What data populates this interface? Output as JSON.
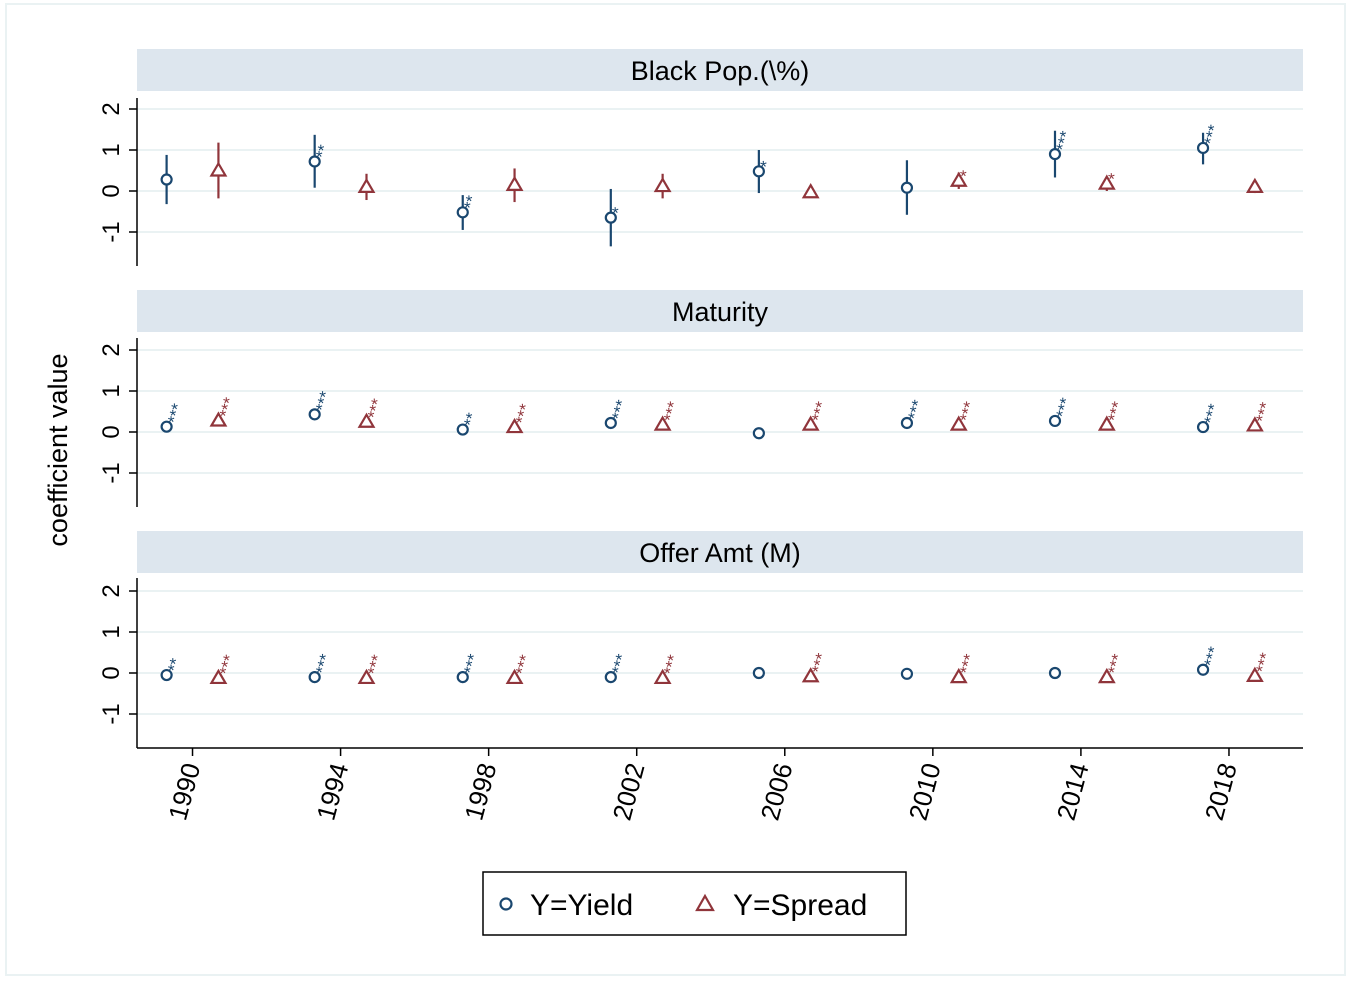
{
  "chart_data": {
    "type": "scatter",
    "ylabel": "coefficient value",
    "x_ticks": [
      1990,
      1994,
      1998,
      2002,
      2006,
      2010,
      2014,
      2018
    ],
    "xlim": [
      1988.5,
      2020
    ],
    "ylim": [
      -1.8,
      2.5
    ],
    "y_ticks": [
      -1,
      0,
      1,
      2
    ],
    "grid": true,
    "legend_position": "bottom",
    "colors": {
      "yield": "#1a476f",
      "spread": "#90353b",
      "strip": "#dde6ee",
      "grid": "#eaf2f3",
      "frame": "#eaf2f3"
    },
    "legend": [
      {
        "label": "Y=Yield",
        "marker": "circle",
        "color": "#1a476f"
      },
      {
        "label": "Y=Spread",
        "marker": "triangle",
        "color": "#90353b"
      }
    ],
    "panels": [
      {
        "title": "Black Pop.(\\%)",
        "series": [
          {
            "name": "Y=Yield",
            "points": [
              {
                "x": 1989.3,
                "y": 0.28,
                "lo": -0.32,
                "hi": 0.88,
                "stars": ""
              },
              {
                "x": 1993.3,
                "y": 0.72,
                "lo": 0.08,
                "hi": 1.37,
                "stars": "**"
              },
              {
                "x": 1997.3,
                "y": -0.52,
                "lo": -0.95,
                "hi": -0.1,
                "stars": "**"
              },
              {
                "x": 2001.3,
                "y": -0.65,
                "lo": -1.35,
                "hi": 0.05,
                "stars": "*"
              },
              {
                "x": 2005.3,
                "y": 0.48,
                "lo": -0.05,
                "hi": 1.0,
                "stars": "*"
              },
              {
                "x": 2009.3,
                "y": 0.08,
                "lo": -0.58,
                "hi": 0.75,
                "stars": ""
              },
              {
                "x": 2013.3,
                "y": 0.9,
                "lo": 0.33,
                "hi": 1.47,
                "stars": "***"
              },
              {
                "x": 2017.3,
                "y": 1.05,
                "lo": 0.65,
                "hi": 1.42,
                "stars": "***"
              }
            ]
          },
          {
            "name": "Y=Spread",
            "points": [
              {
                "x": 1990.7,
                "y": 0.5,
                "lo": -0.18,
                "hi": 1.18,
                "stars": ""
              },
              {
                "x": 1994.7,
                "y": 0.1,
                "lo": -0.22,
                "hi": 0.42,
                "stars": ""
              },
              {
                "x": 1998.7,
                "y": 0.15,
                "lo": -0.27,
                "hi": 0.55,
                "stars": ""
              },
              {
                "x": 2002.7,
                "y": 0.12,
                "lo": -0.18,
                "hi": 0.42,
                "stars": ""
              },
              {
                "x": 2006.7,
                "y": -0.03,
                "lo": -0.15,
                "hi": 0.1,
                "stars": ""
              },
              {
                "x": 2010.7,
                "y": 0.25,
                "lo": 0.05,
                "hi": 0.45,
                "stars": "*"
              },
              {
                "x": 2014.7,
                "y": 0.18,
                "lo": 0.0,
                "hi": 0.35,
                "stars": "*"
              },
              {
                "x": 2018.7,
                "y": 0.1,
                "lo": -0.05,
                "hi": 0.25,
                "stars": ""
              }
            ]
          }
        ]
      },
      {
        "title": "Maturity",
        "series": [
          {
            "name": "Y=Yield",
            "points": [
              {
                "x": 1989.3,
                "y": 0.13,
                "lo": 0.08,
                "hi": 0.18,
                "stars": "***"
              },
              {
                "x": 1993.3,
                "y": 0.43,
                "lo": 0.38,
                "hi": 0.48,
                "stars": "***"
              },
              {
                "x": 1997.3,
                "y": 0.06,
                "lo": 0.01,
                "hi": 0.11,
                "stars": "**"
              },
              {
                "x": 2001.3,
                "y": 0.22,
                "lo": 0.17,
                "hi": 0.27,
                "stars": "***"
              },
              {
                "x": 2005.3,
                "y": -0.03,
                "lo": -0.08,
                "hi": 0.02,
                "stars": ""
              },
              {
                "x": 2009.3,
                "y": 0.22,
                "lo": 0.17,
                "hi": 0.27,
                "stars": "***"
              },
              {
                "x": 2013.3,
                "y": 0.27,
                "lo": 0.22,
                "hi": 0.32,
                "stars": "***"
              },
              {
                "x": 2017.3,
                "y": 0.12,
                "lo": 0.07,
                "hi": 0.17,
                "stars": "***"
              }
            ]
          },
          {
            "name": "Y=Spread",
            "points": [
              {
                "x": 1990.7,
                "y": 0.28,
                "lo": 0.23,
                "hi": 0.33,
                "stars": "***"
              },
              {
                "x": 1994.7,
                "y": 0.25,
                "lo": 0.2,
                "hi": 0.3,
                "stars": "***"
              },
              {
                "x": 1998.7,
                "y": 0.12,
                "lo": 0.07,
                "hi": 0.17,
                "stars": "***"
              },
              {
                "x": 2002.7,
                "y": 0.18,
                "lo": 0.13,
                "hi": 0.23,
                "stars": "***"
              },
              {
                "x": 2006.7,
                "y": 0.18,
                "lo": 0.13,
                "hi": 0.23,
                "stars": "***"
              },
              {
                "x": 2010.7,
                "y": 0.18,
                "lo": 0.13,
                "hi": 0.23,
                "stars": "***"
              },
              {
                "x": 2014.7,
                "y": 0.18,
                "lo": 0.13,
                "hi": 0.23,
                "stars": "***"
              },
              {
                "x": 2018.7,
                "y": 0.16,
                "lo": 0.11,
                "hi": 0.21,
                "stars": "***"
              }
            ]
          }
        ]
      },
      {
        "title": "Offer Amt (M)",
        "series": [
          {
            "name": "Y=Yield",
            "points": [
              {
                "x": 1989.3,
                "y": -0.05,
                "lo": -0.1,
                "hi": 0.0,
                "stars": "**"
              },
              {
                "x": 1993.3,
                "y": -0.1,
                "lo": -0.15,
                "hi": -0.05,
                "stars": "***"
              },
              {
                "x": 1997.3,
                "y": -0.1,
                "lo": -0.15,
                "hi": -0.05,
                "stars": "***"
              },
              {
                "x": 2001.3,
                "y": -0.1,
                "lo": -0.15,
                "hi": -0.05,
                "stars": "***"
              },
              {
                "x": 2005.3,
                "y": 0.0,
                "lo": -0.05,
                "hi": 0.05,
                "stars": ""
              },
              {
                "x": 2009.3,
                "y": -0.02,
                "lo": -0.07,
                "hi": 0.03,
                "stars": ""
              },
              {
                "x": 2013.3,
                "y": 0.0,
                "lo": -0.05,
                "hi": 0.05,
                "stars": ""
              },
              {
                "x": 2017.3,
                "y": 0.08,
                "lo": 0.03,
                "hi": 0.13,
                "stars": "***"
              }
            ]
          },
          {
            "name": "Y=Spread",
            "points": [
              {
                "x": 1990.7,
                "y": -0.12,
                "lo": -0.17,
                "hi": -0.07,
                "stars": "***"
              },
              {
                "x": 1994.7,
                "y": -0.12,
                "lo": -0.17,
                "hi": -0.07,
                "stars": "***"
              },
              {
                "x": 1998.7,
                "y": -0.12,
                "lo": -0.17,
                "hi": -0.07,
                "stars": "***"
              },
              {
                "x": 2002.7,
                "y": -0.12,
                "lo": -0.17,
                "hi": -0.07,
                "stars": "***"
              },
              {
                "x": 2006.7,
                "y": -0.08,
                "lo": -0.13,
                "hi": -0.03,
                "stars": "***"
              },
              {
                "x": 2010.7,
                "y": -0.1,
                "lo": -0.15,
                "hi": -0.05,
                "stars": "***"
              },
              {
                "x": 2014.7,
                "y": -0.1,
                "lo": -0.15,
                "hi": -0.05,
                "stars": "***"
              },
              {
                "x": 2018.7,
                "y": -0.07,
                "lo": -0.12,
                "hi": -0.02,
                "stars": "***"
              }
            ]
          }
        ]
      }
    ]
  }
}
